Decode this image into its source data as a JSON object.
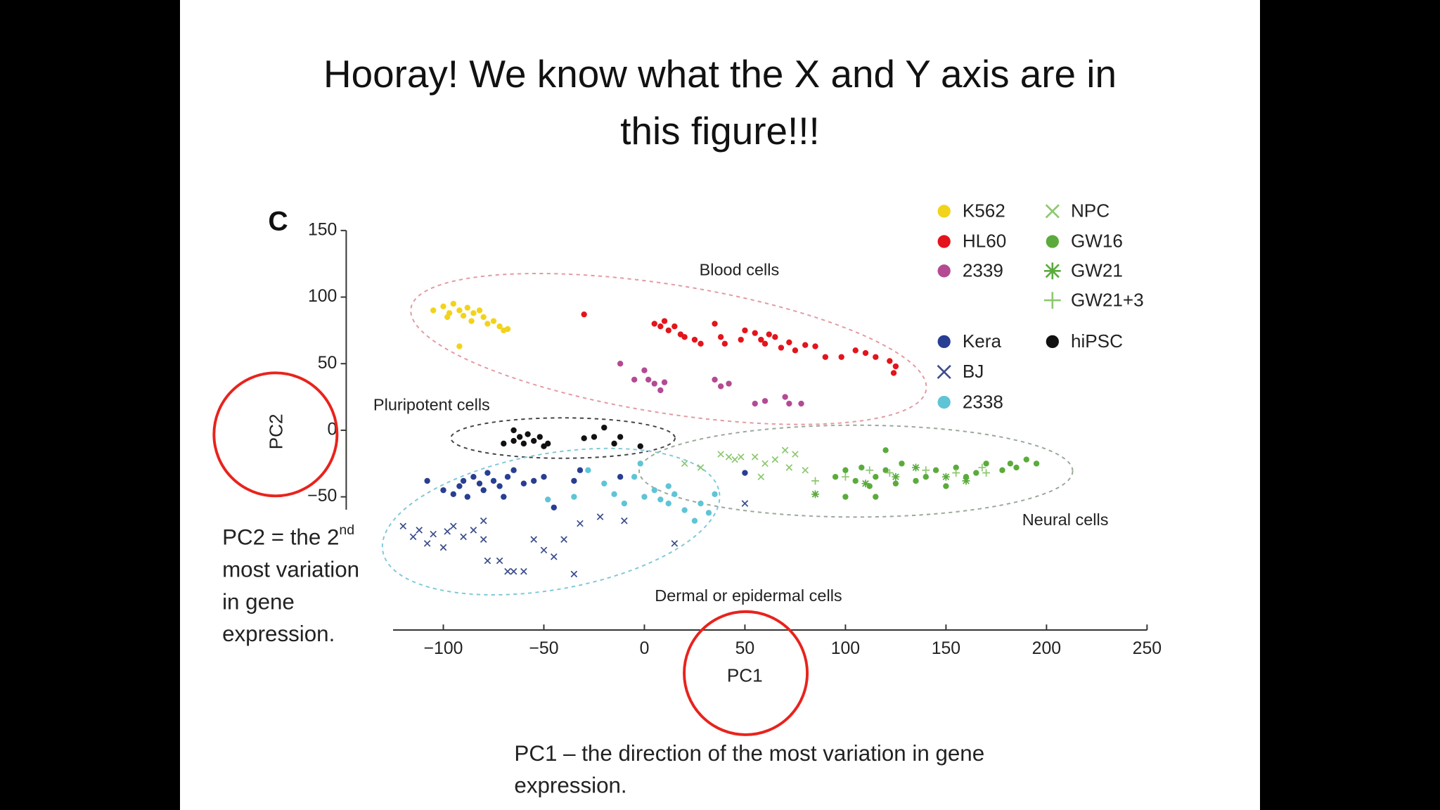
{
  "slide": {
    "title_lines": [
      "Hooray!  We know what the X and Y axis are in",
      "this figure!!!"
    ],
    "pc2_note": {
      "prefix": "PC2 = the 2",
      "sup": "nd",
      "lines": [
        "most variation",
        "in gene",
        "expression."
      ]
    },
    "pc1_note_lines": [
      "PC1 – the direction of the most variation in gene",
      "expression."
    ]
  },
  "chart_data": {
    "type": "scatter",
    "panel_label": "C",
    "x_label": "PC1",
    "y_label": "PC2",
    "annotations": [
      "Blood cells",
      "Pluripotent cells",
      "Neural cells",
      "Dermal or epidermal cells"
    ],
    "xlim": [
      -125,
      250
    ],
    "ylim": [
      -150,
      150
    ],
    "xticks": [
      {
        "value": -100,
        "label": "−100"
      },
      {
        "value": -50,
        "label": "−50"
      },
      0,
      50,
      100,
      150,
      200,
      250
    ],
    "yticks": [
      {
        "value": -50,
        "label": "−50"
      },
      0,
      50,
      100,
      150
    ],
    "series": [
      {
        "name": "K562",
        "color": "#f2d31b",
        "marker": "circle",
        "x": [
          -105,
          -100,
          -97,
          -95,
          -92,
          -90,
          -88,
          -85,
          -82,
          -80,
          -78,
          -75,
          -72,
          -70,
          -68,
          -92,
          -98,
          -86
        ],
        "y": [
          90,
          93,
          88,
          95,
          90,
          86,
          92,
          88,
          90,
          85,
          80,
          82,
          78,
          75,
          76,
          63,
          85,
          82
        ]
      },
      {
        "name": "HL60",
        "color": "#e3141b",
        "marker": "circle",
        "x": [
          5,
          8,
          10,
          12,
          15,
          18,
          20,
          25,
          28,
          35,
          38,
          40,
          48,
          50,
          55,
          58,
          60,
          62,
          65,
          68,
          72,
          75,
          80,
          85,
          90,
          98,
          105,
          110,
          115,
          122,
          125,
          124,
          -30
        ],
        "y": [
          80,
          78,
          82,
          75,
          78,
          72,
          70,
          68,
          65,
          80,
          70,
          65,
          68,
          75,
          73,
          68,
          65,
          72,
          70,
          62,
          66,
          60,
          64,
          63,
          55,
          55,
          60,
          58,
          55,
          52,
          48,
          43,
          87
        ]
      },
      {
        "name": "2339",
        "color": "#b44a93",
        "marker": "circle",
        "x": [
          -12,
          0,
          2,
          5,
          8,
          10,
          35,
          38,
          42,
          55,
          60,
          70,
          72,
          78,
          -5
        ],
        "y": [
          50,
          45,
          38,
          35,
          30,
          36,
          38,
          33,
          35,
          20,
          22,
          25,
          20,
          20,
          38
        ]
      },
      {
        "name": "Kera",
        "color": "#283e92",
        "marker": "circle",
        "x": [
          -108,
          -100,
          -95,
          -92,
          -90,
          -88,
          -85,
          -82,
          -80,
          -78,
          -75,
          -72,
          -70,
          -68,
          -65,
          -60,
          -55,
          -50,
          -45,
          -35,
          -32,
          50,
          -12
        ],
        "y": [
          -38,
          -45,
          -48,
          -42,
          -38,
          -50,
          -35,
          -40,
          -45,
          -32,
          -38,
          -42,
          -50,
          -35,
          -30,
          -40,
          -38,
          -35,
          -58,
          -38,
          -30,
          -32,
          -35
        ]
      },
      {
        "name": "BJ",
        "color": "#3a4c8c",
        "marker": "x",
        "x": [
          -120,
          -115,
          -112,
          -108,
          -105,
          -100,
          -98,
          -95,
          -90,
          -85,
          -80,
          -78,
          -72,
          -68,
          -65,
          -60,
          -55,
          -50,
          -45,
          -40,
          -35,
          -32,
          -22,
          -10,
          15,
          50,
          -80
        ],
        "y": [
          -72,
          -80,
          -75,
          -85,
          -78,
          -88,
          -76,
          -72,
          -80,
          -75,
          -82,
          -98,
          -98,
          -106,
          -106,
          -106,
          -82,
          -90,
          -95,
          -82,
          -108,
          -70,
          -65,
          -68,
          -85,
          -55,
          -68
        ]
      },
      {
        "name": "2338",
        "color": "#5fc4d6",
        "marker": "circle",
        "x": [
          -48,
          -35,
          -28,
          -20,
          -15,
          -10,
          -5,
          0,
          5,
          8,
          12,
          15,
          20,
          25,
          28,
          32,
          35,
          -2,
          12
        ],
        "y": [
          -52,
          -50,
          -30,
          -40,
          -48,
          -55,
          -35,
          -50,
          -45,
          -52,
          -42,
          -48,
          -60,
          -68,
          -55,
          -62,
          -48,
          -25,
          -55
        ]
      },
      {
        "name": "NPC",
        "color": "#8cc770",
        "marker": "x",
        "x": [
          20,
          28,
          38,
          42,
          45,
          48,
          55,
          60,
          65,
          70,
          72,
          75,
          80,
          58
        ],
        "y": [
          -25,
          -28,
          -18,
          -20,
          -22,
          -20,
          -20,
          -25,
          -22,
          -15,
          -28,
          -18,
          -30,
          -35
        ]
      },
      {
        "name": "GW16",
        "color": "#5aab3c",
        "marker": "circle",
        "x": [
          95,
          100,
          105,
          108,
          112,
          115,
          120,
          125,
          128,
          135,
          140,
          145,
          150,
          155,
          160,
          165,
          170,
          178,
          182,
          185,
          190,
          195,
          120,
          115,
          100
        ],
        "y": [
          -35,
          -30,
          -38,
          -28,
          -42,
          -35,
          -30,
          -40,
          -25,
          -38,
          -35,
          -30,
          -42,
          -28,
          -35,
          -32,
          -25,
          -30,
          -25,
          -28,
          -22,
          -25,
          -15,
          -50,
          -50
        ]
      },
      {
        "name": "GW21",
        "color": "#5aab3c",
        "marker": "star",
        "x": [
          85,
          110,
          125,
          135,
          150,
          160
        ],
        "y": [
          -48,
          -40,
          -35,
          -28,
          -35,
          -38
        ]
      },
      {
        "name": "GW21+3",
        "color": "#8cc770",
        "marker": "plus",
        "x": [
          85,
          100,
          112,
          122,
          140,
          155,
          170,
          168
        ],
        "y": [
          -38,
          -35,
          -30,
          -32,
          -30,
          -32,
          -32,
          -28
        ]
      },
      {
        "name": "hiPSC",
        "color": "#111111",
        "marker": "circle",
        "x": [
          -70,
          -65,
          -62,
          -60,
          -58,
          -55,
          -52,
          -50,
          -48,
          -30,
          -25,
          -20,
          -15,
          -12,
          -2,
          -65
        ],
        "y": [
          -10,
          -8,
          -5,
          -10,
          -3,
          -8,
          -5,
          -12,
          -10,
          -6,
          -5,
          2,
          -10,
          -5,
          -12,
          0
        ]
      }
    ]
  }
}
